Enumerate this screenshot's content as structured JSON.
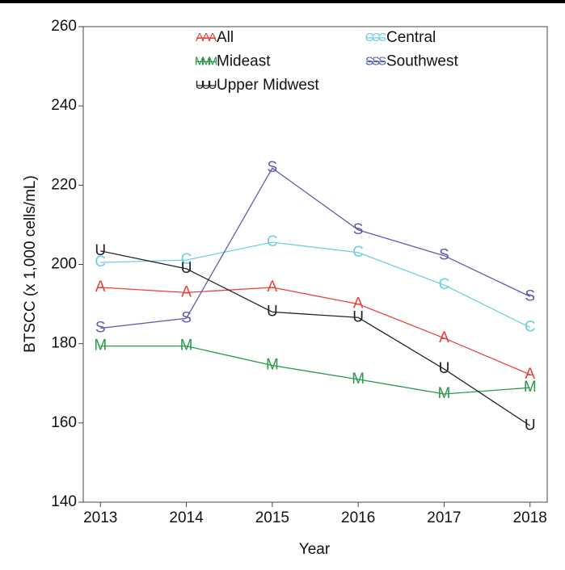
{
  "chart_data": {
    "type": "line",
    "x_label": "Year",
    "y_label": "BTSCC (x 1,000 cells/mL)",
    "x": [
      2013,
      2014,
      2015,
      2016,
      2017,
      2018
    ],
    "xlim": [
      2012.8,
      2018.2
    ],
    "xticks": [
      2013,
      2014,
      2015,
      2016,
      2017,
      2018
    ],
    "ylim": [
      140,
      260
    ],
    "yticks": [
      140,
      160,
      180,
      200,
      220,
      240,
      260
    ],
    "grid": false,
    "series": [
      {
        "name": "All",
        "marker": "A",
        "color": "#e8423a",
        "values": [
          194.2,
          192.9,
          194.2,
          190.0,
          181.4,
          172.2
        ]
      },
      {
        "name": "Central",
        "marker": "C",
        "color": "#6fcfe0",
        "values": [
          200.5,
          201.1,
          205.6,
          203.0,
          194.8,
          184.1
        ]
      },
      {
        "name": "Mideast",
        "marker": "M",
        "color": "#2a9a4a",
        "values": [
          179.4,
          179.4,
          174.5,
          171.0,
          167.3,
          168.9
        ]
      },
      {
        "name": "Southwest",
        "marker": "S",
        "color": "#5a5fb0",
        "values": [
          183.9,
          186.4,
          224.3,
          208.7,
          202.2,
          191.9
        ]
      },
      {
        "name": "Upper Midwest",
        "marker": "U",
        "color": "#222222",
        "values": [
          203.4,
          198.9,
          188.0,
          186.6,
          173.6,
          159.3
        ]
      }
    ]
  }
}
